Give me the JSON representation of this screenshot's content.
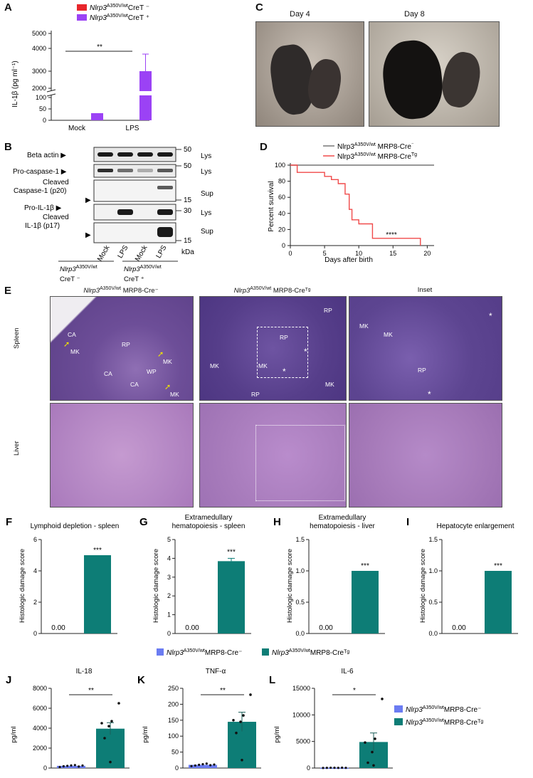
{
  "panels": {
    "A": "A",
    "B": "B",
    "C": "C",
    "D": "D",
    "E": "E",
    "F": "F",
    "G": "G",
    "H": "H",
    "I": "I",
    "J": "J",
    "K": "K",
    "L": "L"
  },
  "colors": {
    "red": "#e8262b",
    "purple": "#9b42f5",
    "teal": "#0d7d76",
    "blue": "#6b7cf2",
    "gray": "#777777",
    "survival_red": "#f04a4a"
  },
  "panelA": {
    "ylabel": "IL-1β (pg ml⁻¹)",
    "legend": [
      {
        "gene": "Nlrp3",
        "sup": "A350V/wt",
        "rest": "CreT ⁻"
      },
      {
        "gene": "Nlrp3",
        "sup": "A350V/wt",
        "rest": "CreT ⁺"
      }
    ],
    "significance": "**",
    "x_labels": [
      "Mock",
      "LPS"
    ],
    "upper_ticks": [
      "5000",
      "4000",
      "3000",
      "2000"
    ],
    "lower_ticks": [
      "100",
      "50",
      "0"
    ]
  },
  "panelB": {
    "left_labels": [
      "Beta actin ▶",
      "Pro-caspase-1 ▶",
      "Cleaved",
      "Caspase-1 (p20)",
      "▶",
      "Pro-IL-1β ▶",
      "Cleaved",
      "IL-1β (p17)",
      "▶"
    ],
    "mw": [
      "50",
      "50",
      "15",
      "30",
      "15"
    ],
    "fractions": [
      "Lys",
      "Lys",
      "Sup",
      "Lys",
      "Sup"
    ],
    "lanes": [
      "Mock",
      "LPS",
      "Mock",
      "LPS"
    ],
    "kda": "kDa",
    "groups": [
      {
        "gene": "Nlrp3",
        "sup": "A350V/wt",
        "line2": "CreT ⁻"
      },
      {
        "gene": "Nlrp3",
        "sup": "A350V/wt",
        "line2": "CreT ⁺"
      }
    ]
  },
  "panelC": {
    "titles": [
      "Day 4",
      "Day 8"
    ]
  },
  "panelD": {
    "legend": [
      {
        "text": "Nlrp3",
        "sup": "A350V/wt",
        "rest": " MRP8-Cre",
        "sup2": "⁻"
      },
      {
        "text": "Nlrp3",
        "sup": "A350V/wt",
        "rest": " MRP8-Cre",
        "sup2": "Tg"
      }
    ],
    "ylabel": "Percent survival",
    "xlabel": "Days after birth",
    "significance": "****",
    "chart_data": {
      "type": "line",
      "xlim": [
        0,
        21
      ],
      "ylim": [
        0,
        100
      ],
      "x_ticks": [
        "0",
        "5",
        "10",
        "15",
        "20"
      ],
      "y_ticks": [
        "0",
        "20",
        "40",
        "60",
        "80",
        "100"
      ],
      "series": [
        {
          "name": "Nlrp3 A350V/wt MRP8-Cre-",
          "x": [
            0,
            21
          ],
          "y": [
            100,
            100
          ]
        },
        {
          "name": "Nlrp3 A350V/wt MRP8-Cre Tg",
          "x": [
            0,
            1,
            1,
            5,
            5,
            6,
            6,
            7,
            7,
            8,
            8,
            8.6,
            8.6,
            9,
            9,
            10,
            10,
            12,
            12,
            19,
            19
          ],
          "y": [
            100,
            100,
            91,
            91,
            86,
            86,
            82,
            82,
            77,
            77,
            64,
            64,
            45,
            45,
            32,
            32,
            27,
            27,
            9,
            9,
            0
          ]
        }
      ]
    }
  },
  "panelE": {
    "col_titles": [
      {
        "gene": "Nlrp3",
        "sup": "A350V/wt",
        "rest": " MRP8-Cre⁻"
      },
      {
        "gene": "Nlrp3",
        "sup": "A350V/wt",
        "rest": " MRP8-Creᵀᵍ"
      },
      {
        "gene": "",
        "sup": "",
        "rest": "Inset"
      }
    ],
    "row_labels": [
      "Spleen",
      "Liver"
    ],
    "annot": {
      "CA": "CA",
      "MK": "MK",
      "RP": "RP",
      "WP": "WP",
      "star": "*"
    }
  },
  "bar_panels": [
    {
      "letter": "F",
      "title": [
        "",
        "Lymphoid depletion - spleen"
      ],
      "ylabel": "Histologic damage score",
      "zero": "0.00",
      "sig": "***",
      "ymax": 6,
      "ticks": [
        "0",
        "2",
        "4",
        "6"
      ],
      "tickvals": [
        0,
        2,
        4,
        6
      ],
      "value": 5.0,
      "err": 0
    },
    {
      "letter": "G",
      "title": [
        "Extramedullary",
        "hematopoiesis - spleen"
      ],
      "ylabel": "Histologic damage score",
      "zero": "0.00",
      "sig": "***",
      "ymax": 5,
      "ticks": [
        "0",
        "1",
        "2",
        "3",
        "4",
        "5"
      ],
      "tickvals": [
        0,
        1,
        2,
        3,
        4,
        5
      ],
      "value": 3.85,
      "err": 0.15
    },
    {
      "letter": "H",
      "title": [
        "Extramedullary",
        "hematopoiesis - liver"
      ],
      "ylabel": "Histologic damage score",
      "zero": "0.00",
      "sig": "***",
      "ymax": 1.5,
      "ticks": [
        "0.0",
        "0.5",
        "1.0",
        "1.5"
      ],
      "tickvals": [
        0,
        0.5,
        1.0,
        1.5
      ],
      "value": 1.0,
      "err": 0
    },
    {
      "letter": "I",
      "title": [
        "",
        "Hepatocyte enlargement"
      ],
      "ylabel": "Histologic damage score",
      "zero": "0.00",
      "sig": "***",
      "ymax": 1.5,
      "ticks": [
        "0.0",
        "0.5",
        "1.0",
        "1.5"
      ],
      "tickvals": [
        0,
        0.5,
        1.0,
        1.5
      ],
      "value": 1.0,
      "err": 0
    }
  ],
  "legend_mid": [
    {
      "gene": "Nlrp3",
      "sup": "A350V/wt",
      "rest": "MRP8-Cre⁻"
    },
    {
      "gene": "Nlrp3",
      "sup": "A350V/wt",
      "rest": "MRP8-Creᵀᵍ"
    }
  ],
  "cytokine_panels": [
    {
      "letter": "J",
      "title": "IL-18",
      "ylabel": "pg/ml",
      "sig": "**",
      "ymax": 8000,
      "ticks": [
        "0",
        "2000",
        "4000",
        "6000",
        "8000"
      ],
      "tickvals": [
        0,
        2000,
        4000,
        6000,
        8000
      ],
      "ctrl": {
        "mean": 220,
        "err": 60,
        "pts": [
          100,
          180,
          220,
          260,
          300,
          150,
          250
        ]
      },
      "tg": {
        "mean": 3950,
        "err": 600,
        "pts": [
          6500,
          4700,
          4500,
          4200,
          3000,
          600
        ]
      }
    },
    {
      "letter": "K",
      "title": "TNF-α",
      "ylabel": "pg/ml",
      "sig": "**",
      "ymax": 250,
      "ticks": [
        "0",
        "50",
        "100",
        "150",
        "200",
        "250"
      ],
      "tickvals": [
        0,
        50,
        100,
        150,
        200,
        250
      ],
      "ctrl": {
        "mean": 10,
        "err": 2,
        "pts": [
          6,
          8,
          10,
          12,
          14,
          9,
          11
        ]
      },
      "tg": {
        "mean": 145,
        "err": 30,
        "pts": [
          230,
          165,
          150,
          145,
          110,
          25
        ]
      }
    },
    {
      "letter": "L",
      "title": "IL-6",
      "ylabel": "pg/ml",
      "sig": "*",
      "ymax": 15000,
      "ticks": [
        "0",
        "5000",
        "10000",
        "15000"
      ],
      "tickvals": [
        0,
        5000,
        10000,
        15000
      ],
      "ctrl": {
        "mean": 50,
        "err": 20,
        "pts": [
          20,
          40,
          60,
          50,
          30,
          70,
          40
        ]
      },
      "tg": {
        "mean": 4900,
        "err": 1700,
        "pts": [
          13000,
          5500,
          4800,
          3000,
          1000,
          500
        ]
      }
    }
  ],
  "legend_right": [
    {
      "gene": "Nlrp3",
      "sup": "A350V/wt",
      "rest": "MRP8-Cre⁻"
    },
    {
      "gene": "Nlrp3",
      "sup": "A350V/wt",
      "rest": "MRP8-Creᵀᵍ"
    }
  ],
  "chart_data": {
    "type": "bar",
    "note": "composite figure; per-panel data in bar_panels, cytokine_panels, panelD.chart_data"
  }
}
